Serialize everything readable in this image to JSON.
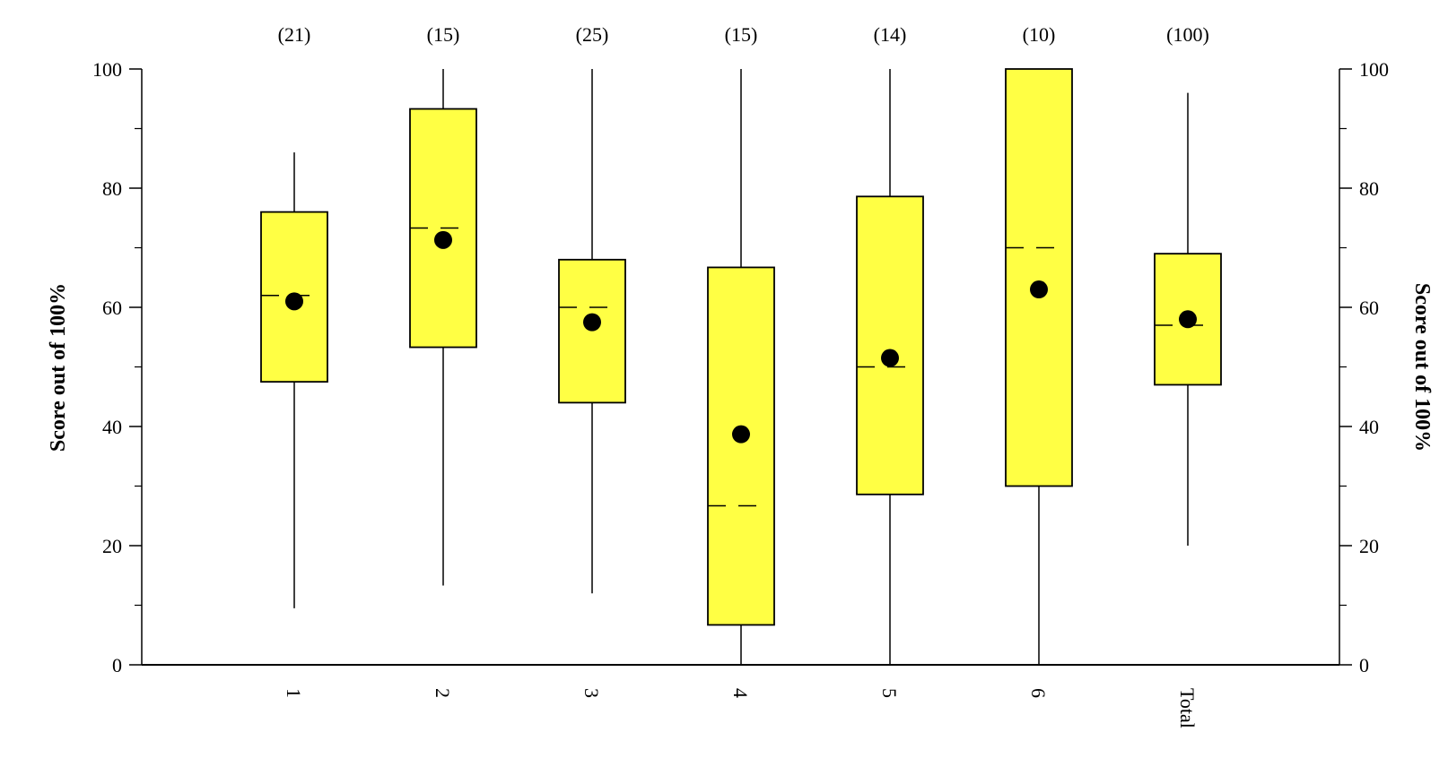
{
  "chart_data": {
    "type": "box",
    "categories": [
      "1",
      "2",
      "3",
      "4",
      "5",
      "6",
      "Total"
    ],
    "counts": [
      "(21)",
      "(15)",
      "(25)",
      "(15)",
      "(14)",
      "(10)",
      "(100)"
    ],
    "boxes": [
      {
        "whisker_low": 9.5,
        "q1": 47.5,
        "median": 62,
        "q3": 76,
        "whisker_high": 86,
        "mean": 61
      },
      {
        "whisker_low": 13.3,
        "q1": 53.3,
        "median": 73.3,
        "q3": 93.3,
        "whisker_high": 100,
        "mean": 71.3
      },
      {
        "whisker_low": 12,
        "q1": 44,
        "median": 60,
        "q3": 68,
        "whisker_high": 100,
        "mean": 57.5
      },
      {
        "whisker_low": 0,
        "q1": 6.7,
        "median": 26.7,
        "q3": 66.7,
        "whisker_high": 100,
        "mean": 38.7
      },
      {
        "whisker_low": 0,
        "q1": 28.6,
        "median": 50,
        "q3": 78.6,
        "whisker_high": 100,
        "mean": 51.5
      },
      {
        "whisker_low": 0,
        "q1": 30,
        "median": 70,
        "q3": 100,
        "whisker_high": 100,
        "mean": 63
      },
      {
        "whisker_low": 20,
        "q1": 47,
        "median": 57,
        "q3": 69,
        "whisker_high": 96,
        "mean": 58
      }
    ],
    "ylabel": "Score out of 100%",
    "ylabel_right": "Score out of 100%",
    "ylim": [
      0,
      100
    ],
    "yticks": [
      0,
      20,
      40,
      60,
      80,
      100
    ],
    "yticks_labels": [
      "0",
      "20",
      "40",
      "60",
      "80",
      "100"
    ],
    "grid": false,
    "colors": {
      "box_fill": "#ffff44",
      "stroke": "#000000",
      "mean": "#000000"
    }
  }
}
